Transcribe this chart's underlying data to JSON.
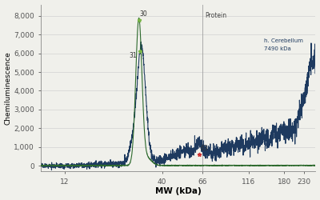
{
  "xlabel": "MW (kDa)",
  "ylabel": "Chemiluminescence",
  "ylim": [
    -300,
    8600
  ],
  "yticks": [
    0,
    1000,
    2000,
    3000,
    4000,
    5000,
    6000,
    7000,
    8000
  ],
  "ytick_labels": [
    "0",
    "1,000",
    "2,000",
    "3,000",
    "4,000",
    "5,000",
    "6,000",
    "7,000",
    "8,000"
  ],
  "xticks": [
    12,
    40,
    66,
    116,
    180,
    230
  ],
  "color_blue": "#1e3a5f",
  "color_green": "#2d6a2d",
  "color_vline": "#999999",
  "peak_green_x": 30,
  "peak_blue_x": 31,
  "peak_green_y": 7750,
  "peak_blue_y": 6100,
  "marker_63_x": 63,
  "marker_63_y": 600,
  "vline_x": 66,
  "label_protein": "Protein",
  "label_cerebellum": "h. Cerebellum",
  "label_cerebellum_sub": "7490 kDa",
  "background_color": "#f0f0eb"
}
